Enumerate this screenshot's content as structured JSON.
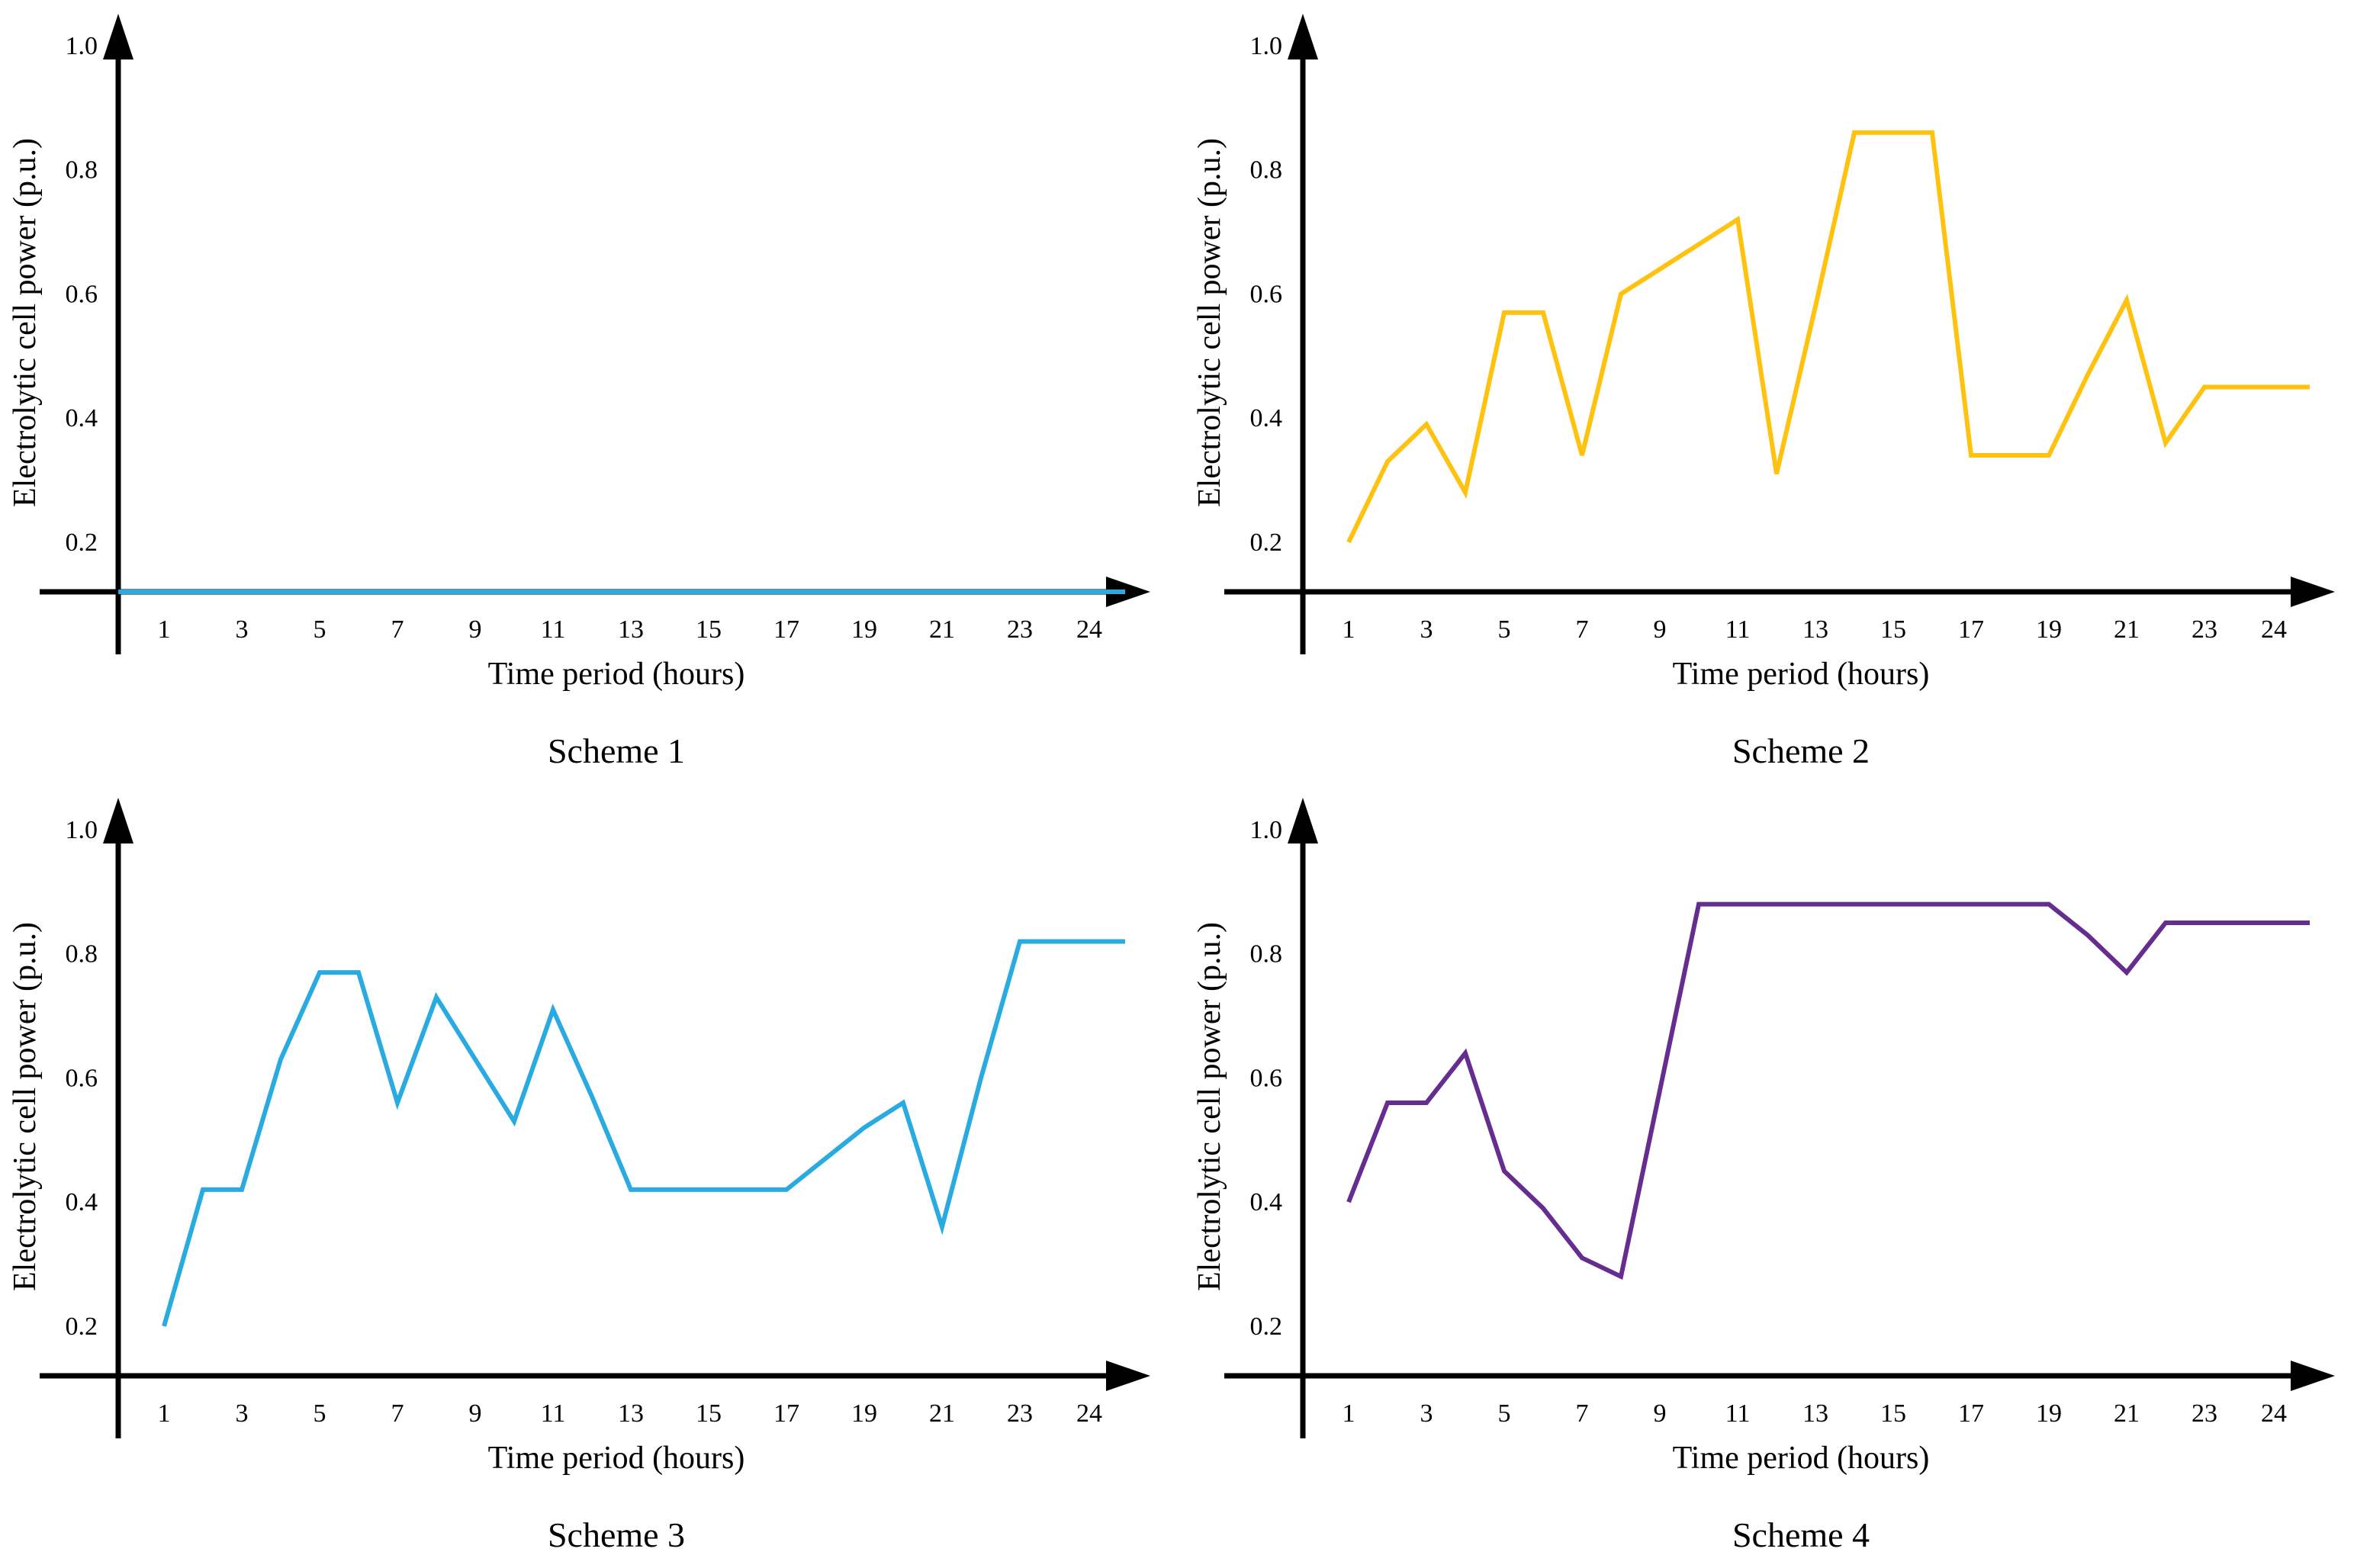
{
  "figure": {
    "background_color": "#FFFFFF",
    "text_color": "#000000",
    "axis_color": "#000000",
    "hours": [
      1,
      2,
      3,
      4,
      5,
      6,
      7,
      8,
      9,
      10,
      11,
      12,
      13,
      14,
      15,
      16,
      17,
      18,
      19,
      20,
      21,
      22,
      23,
      24
    ]
  },
  "chart_data": [
    {
      "type": "line",
      "title": "Scheme 1",
      "xlabel": "Time period (hours)",
      "ylabel": "Electrolytic cell power (p.u.)",
      "color": "#29ABE2",
      "x_ticks": [
        1,
        3,
        5,
        7,
        9,
        11,
        13,
        15,
        17,
        19,
        21,
        23,
        24
      ],
      "x_tick_labels": [
        "1",
        "3",
        "5",
        "7",
        "9",
        "11",
        "13",
        "15",
        "17",
        "19",
        "21",
        "23",
        "24"
      ],
      "y_ticks": [
        0.2,
        0.4,
        0.6,
        0.8,
        1.0
      ],
      "y_tick_labels": [
        "0.2",
        "0.4",
        "0.6",
        "0.8",
        "1.0"
      ],
      "baseline_value": 0.12,
      "ylim": [
        0.12,
        1.0
      ],
      "grid": false,
      "legend": "none",
      "flat_on_axis": true,
      "values": [
        0.12,
        0.12,
        0.12,
        0.12,
        0.12,
        0.12,
        0.12,
        0.12,
        0.12,
        0.12,
        0.12,
        0.12,
        0.12,
        0.12,
        0.12,
        0.12,
        0.12,
        0.12,
        0.12,
        0.12,
        0.12,
        0.12,
        0.12,
        0.12
      ]
    },
    {
      "type": "line",
      "title": "Scheme 2",
      "xlabel": "Time period (hours)",
      "ylabel": "Electrolytic cell power (p.u.)",
      "color": "#FFC20E",
      "x_ticks": [
        1,
        3,
        5,
        7,
        9,
        11,
        13,
        15,
        17,
        19,
        21,
        23,
        24
      ],
      "x_tick_labels": [
        "1",
        "3",
        "5",
        "7",
        "9",
        "11",
        "13",
        "15",
        "17",
        "19",
        "21",
        "23",
        "24"
      ],
      "y_ticks": [
        0.2,
        0.4,
        0.6,
        0.8,
        1.0
      ],
      "y_tick_labels": [
        "0.2",
        "0.4",
        "0.6",
        "0.8",
        "1.0"
      ],
      "baseline_value": 0.12,
      "ylim": [
        0.12,
        1.0
      ],
      "grid": false,
      "legend": "none",
      "flat_on_axis": false,
      "values": [
        0.2,
        0.33,
        0.39,
        0.28,
        0.57,
        0.57,
        0.34,
        0.6,
        0.64,
        0.68,
        0.72,
        0.31,
        0.58,
        0.86,
        0.86,
        0.86,
        0.34,
        0.34,
        0.34,
        0.47,
        0.59,
        0.36,
        0.45,
        0.45
      ]
    },
    {
      "type": "line",
      "title": "Scheme 3",
      "xlabel": "Time period (hours)",
      "ylabel": "Electrolytic cell power (p.u.)",
      "color": "#29ABE2",
      "x_ticks": [
        1,
        3,
        5,
        7,
        9,
        11,
        13,
        15,
        17,
        19,
        21,
        23,
        24
      ],
      "x_tick_labels": [
        "1",
        "3",
        "5",
        "7",
        "9",
        "11",
        "13",
        "15",
        "17",
        "19",
        "21",
        "23",
        "24"
      ],
      "y_ticks": [
        0.2,
        0.4,
        0.6,
        0.8,
        1.0
      ],
      "y_tick_labels": [
        "0.2",
        "0.4",
        "0.6",
        "0.8",
        "1.0"
      ],
      "baseline_value": 0.12,
      "ylim": [
        0.12,
        1.0
      ],
      "grid": false,
      "legend": "none",
      "flat_on_axis": false,
      "values": [
        0.2,
        0.42,
        0.42,
        0.63,
        0.77,
        0.77,
        0.56,
        0.73,
        0.63,
        0.53,
        0.71,
        0.57,
        0.42,
        0.42,
        0.42,
        0.42,
        0.42,
        0.47,
        0.52,
        0.56,
        0.36,
        0.6,
        0.82,
        0.82
      ]
    },
    {
      "type": "line",
      "title": "Scheme 4",
      "xlabel": "Time period (hours)",
      "ylabel": "Electrolytic cell power (p.u.)",
      "color": "#662D91",
      "x_ticks": [
        1,
        3,
        5,
        7,
        9,
        11,
        13,
        15,
        17,
        19,
        21,
        23,
        24
      ],
      "x_tick_labels": [
        "1",
        "3",
        "5",
        "7",
        "9",
        "11",
        "13",
        "15",
        "17",
        "19",
        "21",
        "23",
        "24"
      ],
      "y_ticks": [
        0.2,
        0.4,
        0.6,
        0.8,
        1.0
      ],
      "y_tick_labels": [
        "0.2",
        "0.4",
        "0.6",
        "0.8",
        "1.0"
      ],
      "baseline_value": 0.12,
      "ylim": [
        0.12,
        1.0
      ],
      "grid": false,
      "legend": "none",
      "flat_on_axis": false,
      "values": [
        0.4,
        0.56,
        0.56,
        0.64,
        0.45,
        0.39,
        0.31,
        0.28,
        0.58,
        0.88,
        0.88,
        0.88,
        0.88,
        0.88,
        0.88,
        0.88,
        0.88,
        0.88,
        0.88,
        0.83,
        0.77,
        0.85,
        0.85,
        0.85
      ]
    }
  ]
}
